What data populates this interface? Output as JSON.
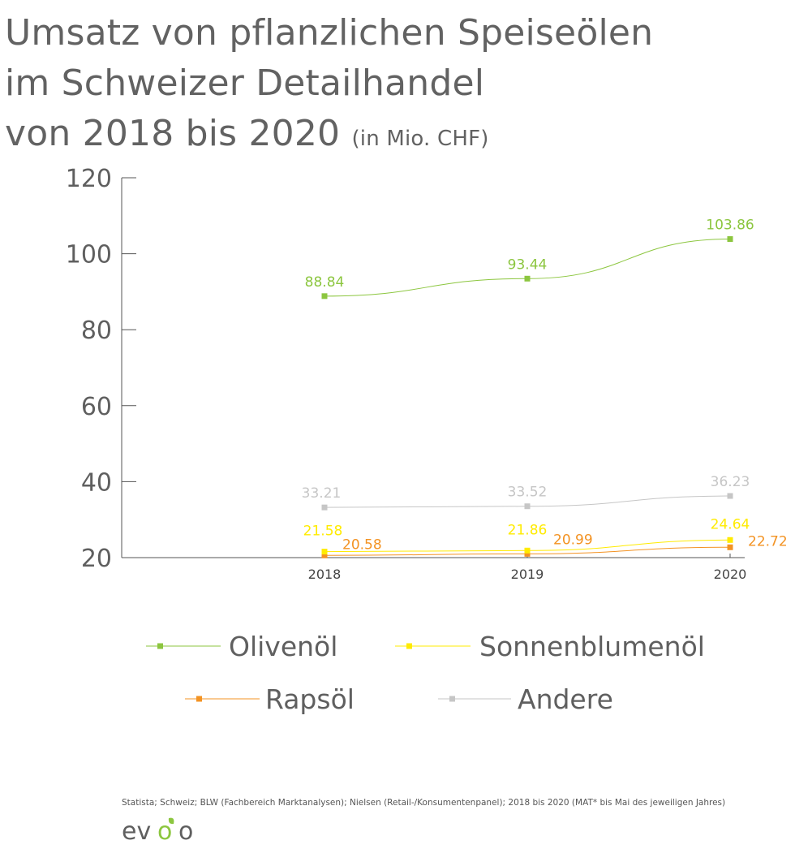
{
  "title": {
    "line1": "Umsatz von pflanzlichen Speiseölen",
    "line2": "im Schweizer Detailhandel",
    "line3": "von 2018 bis 2020",
    "unit": "(in Mio. CHF)"
  },
  "source": "Statista; Schweiz; BLW (Fachbereich Marktanalysen); Nielsen (Retail-/Konsumentenpanel); 2018 bis 2020 (MAT* bis Mai des jeweiligen Jahres)",
  "logo": {
    "text_left": "ev",
    "text_right": "o",
    "brand_color": "#8cc63f",
    "text_color": "#5f5f5f"
  },
  "chart_data": {
    "type": "line",
    "x": [
      "2018",
      "2019",
      "2020"
    ],
    "ylim": [
      20,
      120
    ],
    "yticks": [
      20,
      40,
      60,
      80,
      100,
      120
    ],
    "grid": false,
    "legend_position": "bottom",
    "series": [
      {
        "name": "Olivenöl",
        "color": "#8cc63f",
        "values": [
          88.84,
          93.44,
          103.86
        ],
        "labels": [
          "88.84",
          "93.44",
          "103.86"
        ]
      },
      {
        "name": "Sonnenblumenöl",
        "color": "#ffeb00",
        "values": [
          21.58,
          21.86,
          24.64
        ],
        "labels": [
          "21.58",
          "21.86",
          "24.64"
        ]
      },
      {
        "name": "Rapsöl",
        "color": "#f39323",
        "values": [
          20.58,
          20.99,
          22.72
        ],
        "labels": [
          "20.58",
          "20.99",
          "22.72"
        ]
      },
      {
        "name": "Andere",
        "color": "#c6c6c6",
        "values": [
          33.21,
          33.52,
          36.23
        ],
        "labels": [
          "33.21",
          "33.52",
          "36.23"
        ]
      }
    ]
  }
}
